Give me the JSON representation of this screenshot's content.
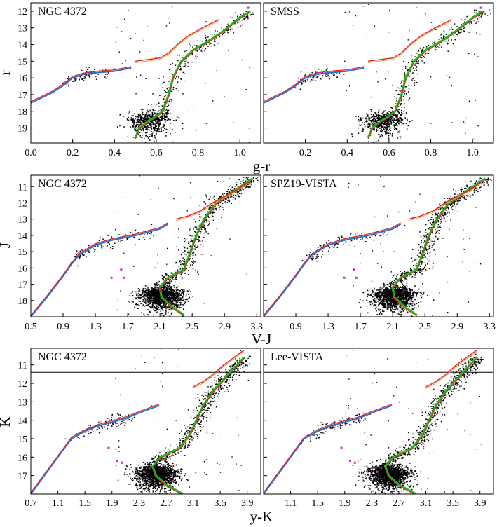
{
  "chart_data": [
    {
      "type": "scatter",
      "row": 1,
      "xlabel": "g-r",
      "ylabel": "r",
      "xlim": [
        0.0,
        1.1
      ],
      "ylim": [
        19.9,
        11.5
      ],
      "xticks": [
        "0.0",
        "0.2",
        "0.4",
        "0.6",
        "0.8",
        "1.0"
      ],
      "yticks": [
        "12",
        "13",
        "14",
        "15",
        "16",
        "17",
        "18",
        "19"
      ],
      "hline": null,
      "panels": [
        {
          "title": "NGC 4372",
          "series_visible": [
            "field_stars",
            "isochrone_rgb",
            "isochrone_hb",
            "isochrone_agb",
            "variables"
          ]
        },
        {
          "title": "SMSS",
          "series_visible": [
            "field_stars",
            "isochrone_rgb",
            "isochrone_hb",
            "isochrone_agb",
            "variables"
          ]
        }
      ],
      "isochrone_rgb": {
        "x": [
          0.5,
          0.52,
          0.56,
          0.6,
          0.63,
          0.66,
          0.68,
          0.72,
          0.78,
          0.85,
          0.92,
          1.0,
          1.05
        ],
        "y": [
          19.6,
          19.0,
          18.6,
          18.3,
          18.0,
          17.0,
          16.0,
          15.0,
          14.3,
          13.8,
          13.2,
          12.4,
          12.0
        ]
      },
      "isochrone_hb": {
        "x": [
          0.0,
          0.05,
          0.1,
          0.15,
          0.2,
          0.25,
          0.3,
          0.4,
          0.48
        ],
        "y": [
          17.5,
          17.2,
          16.9,
          16.5,
          16.0,
          15.8,
          15.7,
          15.6,
          15.4
        ]
      },
      "isochrone_agb": {
        "x": [
          0.5,
          0.56,
          0.62,
          0.66,
          0.7,
          0.75,
          0.82,
          0.9
        ],
        "y": [
          15.0,
          14.9,
          14.8,
          14.5,
          14.0,
          13.5,
          13.0,
          12.5
        ]
      },
      "variables": {
        "x": [
          1.04
        ],
        "y": [
          11.8
        ]
      }
    },
    {
      "type": "scatter",
      "row": 2,
      "xlabel": "V-J",
      "ylabel": "J",
      "xlim": [
        0.5,
        3.35
      ],
      "ylim": [
        19.0,
        10.3
      ],
      "xticks": [
        "0.5",
        "0.9",
        "1.3",
        "1.7",
        "2.1",
        "2.5",
        "2.9",
        "3.3"
      ],
      "yticks": [
        "11",
        "12",
        "13",
        "14",
        "15",
        "16",
        "17",
        "18"
      ],
      "hline": 12.0,
      "panels": [
        {
          "title": "NGC 4372",
          "series_visible": [
            "field_stars",
            "isochrone_rgb",
            "isochrone_hb",
            "isochrone_agb",
            "variables"
          ]
        },
        {
          "title": "SPZ19-VISTA",
          "series_visible": [
            "field_stars",
            "isochrone_rgb",
            "isochrone_hb",
            "isochrone_agb",
            "variables"
          ]
        }
      ],
      "isochrone_rgb": {
        "x": [
          2.4,
          2.25,
          2.12,
          2.1,
          2.2,
          2.4,
          2.48,
          2.55,
          2.65,
          2.8,
          2.95,
          3.1,
          3.25
        ],
        "y": [
          18.9,
          18.4,
          17.8,
          17.2,
          16.6,
          16.1,
          15.0,
          14.0,
          13.0,
          12.0,
          11.5,
          11.0,
          10.5
        ]
      },
      "isochrone_hb": {
        "x": [
          0.5,
          0.7,
          0.9,
          1.0,
          1.1,
          1.3,
          1.5,
          1.8,
          2.1,
          2.2
        ],
        "y": [
          19.0,
          17.8,
          16.5,
          15.8,
          15.2,
          14.6,
          14.3,
          14.0,
          13.6,
          13.3
        ]
      },
      "isochrone_agb": {
        "x": [
          2.3,
          2.45,
          2.6,
          2.75,
          2.9,
          3.05,
          3.2
        ],
        "y": [
          13.0,
          12.8,
          12.5,
          12.0,
          11.6,
          11.2,
          10.7
        ]
      },
      "variables": {
        "x": [
          1.5,
          1.62,
          1.65,
          1.95
        ],
        "y": [
          16.6,
          16.1,
          16.6,
          17.2
        ]
      }
    },
    {
      "type": "scatter",
      "row": 3,
      "xlabel": "y-K",
      "ylabel": "K",
      "xlim": [
        0.7,
        4.1
      ],
      "ylim": [
        18.0,
        10.1
      ],
      "xticks": [
        "0.7",
        "1.1",
        "1.5",
        "1.9",
        "2.3",
        "2.7",
        "3.1",
        "3.5",
        "3.9"
      ],
      "yticks": [
        "11",
        "12",
        "13",
        "14",
        "15",
        "16",
        "17"
      ],
      "hline": 11.4,
      "panels": [
        {
          "title": "NGC 4372",
          "series_visible": [
            "field_stars",
            "isochrone_rgb",
            "isochrone_hb",
            "isochrone_agb",
            "variables"
          ]
        },
        {
          "title": "Lee-VISTA",
          "series_visible": [
            "field_stars",
            "isochrone_rgb",
            "isochrone_hb",
            "isochrone_agb",
            "variables"
          ]
        }
      ],
      "isochrone_rgb": {
        "x": [
          2.95,
          2.7,
          2.55,
          2.5,
          2.62,
          2.9,
          3.05,
          3.15,
          3.25,
          3.4,
          3.55,
          3.7,
          3.85
        ],
        "y": [
          18.0,
          17.5,
          17.0,
          16.5,
          16.0,
          15.5,
          14.8,
          14.0,
          13.2,
          12.4,
          11.8,
          11.2,
          10.6
        ]
      },
      "isochrone_hb": {
        "x": [
          0.7,
          0.9,
          1.1,
          1.2,
          1.3,
          1.5,
          1.7,
          1.9,
          2.1,
          2.3,
          2.6
        ],
        "y": [
          18.0,
          17.0,
          16.0,
          15.5,
          15.0,
          14.6,
          14.3,
          14.1,
          13.9,
          13.6,
          13.2
        ]
      },
      "isochrone_agb": {
        "x": [
          3.1,
          3.25,
          3.4,
          3.55,
          3.7,
          3.85
        ],
        "y": [
          12.2,
          11.9,
          11.5,
          11.0,
          10.6,
          10.2
        ]
      },
      "variables": {
        "x": [
          1.85,
          1.98,
          2.05,
          2.38
        ],
        "y": [
          15.5,
          16.2,
          16.3,
          16.8
        ]
      }
    }
  ],
  "colors": {
    "stars": "#000000",
    "rgb_track": "#16c016",
    "hb_blue": "#2a6fd8",
    "hb_red": "#e52222",
    "agb_orange": "#f0a040",
    "variable": "#c032c0"
  }
}
